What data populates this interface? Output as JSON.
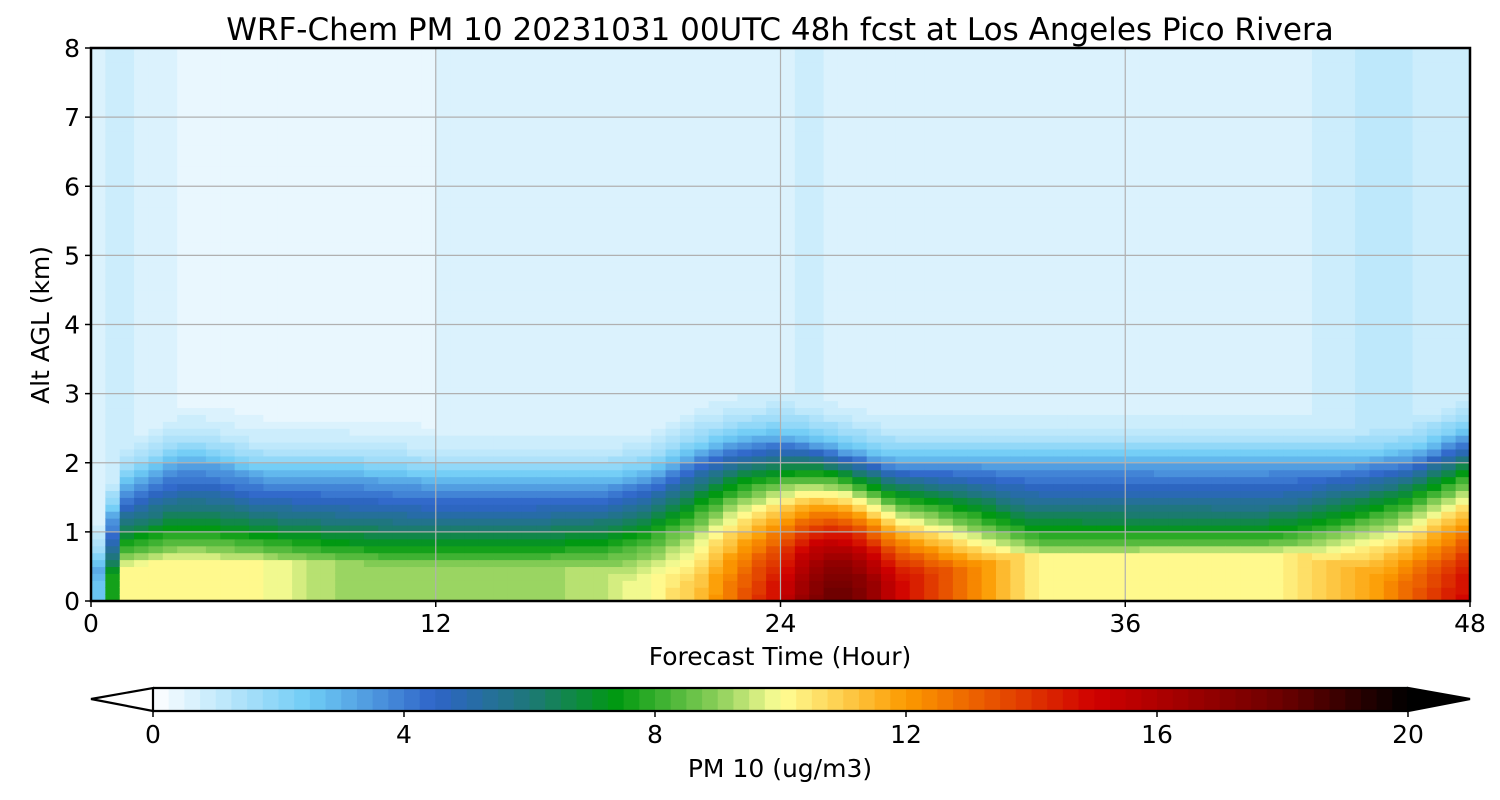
{
  "chart_data": {
    "type": "heatmap",
    "title": "WRF-Chem PM 10  20231031 00UTC 48h fcst at Los Angeles Pico Rivera",
    "xlabel": "Forecast Time (Hour)",
    "ylabel": "Alt AGL (km)",
    "xlim": [
      0,
      48
    ],
    "ylim": [
      0,
      8
    ],
    "xticks": [
      0,
      12,
      24,
      36,
      48
    ],
    "yticks": [
      0,
      1,
      2,
      3,
      4,
      5,
      6,
      7,
      8
    ],
    "grid": true,
    "colorbar": {
      "label": "PM 10  (ug/m3)",
      "orientation": "horizontal",
      "placement": "bottom",
      "range": [
        0,
        20
      ],
      "ticks": [
        0,
        4,
        8,
        12,
        16,
        20
      ],
      "extend": "both",
      "stops": [
        {
          "v": 0,
          "color": "#ffffff"
        },
        {
          "v": 2.5,
          "color": "#6ecbf5"
        },
        {
          "v": 4.5,
          "color": "#2e64c8"
        },
        {
          "v": 6.0,
          "color": "#1e7878"
        },
        {
          "v": 7.4,
          "color": "#009a10"
        },
        {
          "v": 9.0,
          "color": "#8ccf5a"
        },
        {
          "v": 10.0,
          "color": "#ffff96"
        },
        {
          "v": 12.0,
          "color": "#fc9a00"
        },
        {
          "v": 15.0,
          "color": "#d00000"
        },
        {
          "v": 18.0,
          "color": "#6b0000"
        },
        {
          "v": 20.0,
          "color": "#000000"
        }
      ]
    },
    "profile_times": [
      0,
      1,
      2,
      3,
      4,
      6,
      9,
      12,
      15,
      18,
      19.5,
      21,
      22.5,
      24,
      25,
      26,
      27,
      28,
      29,
      30,
      31,
      32,
      33,
      36,
      39,
      41,
      42,
      43,
      44,
      45,
      46,
      47,
      48
    ],
    "profile_bl_top_km": [
      0.1,
      1.6,
      1.8,
      2.0,
      2.0,
      1.8,
      1.8,
      1.7,
      1.7,
      1.7,
      1.8,
      2.1,
      2.3,
      2.35,
      2.3,
      2.2,
      2.1,
      2.0,
      2.0,
      2.0,
      2.0,
      2.0,
      2.0,
      2.0,
      2.0,
      2.0,
      2.0,
      2.0,
      2.0,
      2.05,
      2.1,
      2.25,
      2.4
    ],
    "profile_bl_peak_ugm3": [
      0,
      10,
      10,
      10,
      10,
      10,
      9,
      9,
      9,
      9.5,
      10,
      11,
      13,
      15,
      17,
      18,
      17,
      15,
      14,
      13,
      12,
      11,
      10,
      10,
      10,
      10,
      10.5,
      11,
      11.5,
      12,
      13,
      14,
      15
    ],
    "profile_mix_fraction": [
      0.2,
      0.2,
      0.2,
      0.2,
      0.2,
      0.2,
      0.2,
      0.2,
      0.2,
      0.4,
      0.7,
      0.9,
      1.0,
      1.0,
      0.9,
      0.85,
      0.75,
      0.6,
      0.5,
      0.4,
      0.3,
      0.15,
      0.1,
      0.08,
      0.06,
      0.06,
      0.1,
      0.25,
      0.45,
      0.6,
      0.75,
      0.85,
      0.9
    ],
    "profile_free_troposphere_ugm3": [
      0.6,
      0.8,
      0.7,
      0.5,
      0.3,
      0.25,
      0.3,
      0.5,
      0.6,
      0.6,
      0.6,
      0.6,
      0.6,
      0.7,
      0.8,
      0.7,
      0.6,
      0.6,
      0.5,
      0.5,
      0.5,
      0.5,
      0.5,
      0.5,
      0.5,
      0.6,
      0.7,
      0.8,
      1.0,
      1.0,
      1.0,
      0.9,
      0.8
    ]
  }
}
